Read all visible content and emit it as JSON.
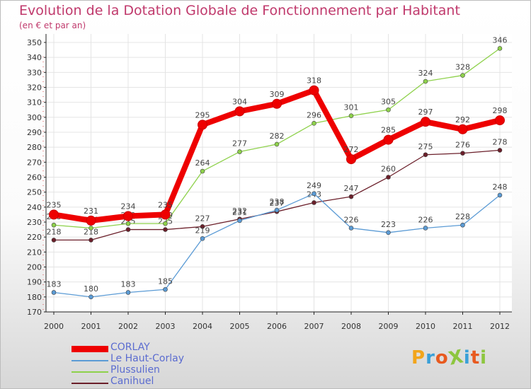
{
  "title": "Evolution de la Dotation Globale de Fonctionnement par Habitant",
  "subtitle": "(en € et par an)",
  "logo": {
    "text": "ProXiti",
    "letters": [
      "P",
      "r",
      "o",
      "X",
      "i",
      "t",
      "i"
    ],
    "colors": [
      "#f2a51b",
      "#3aa0d8",
      "#e85a1f",
      "#8dc63f",
      "#3aa0d8",
      "#e85a1f",
      "#8dc63f"
    ]
  },
  "chart_data": {
    "type": "line",
    "title": "Evolution de la Dotation Globale de Fonctionnement par Habitant",
    "subtitle": "(en € et par an)",
    "xlabel": "",
    "ylabel": "",
    "categories": [
      "2000",
      "2001",
      "2002",
      "2003",
      "2004",
      "2005",
      "2006",
      "2007",
      "2008",
      "2009",
      "2010",
      "2011",
      "2012"
    ],
    "ylim": [
      170,
      350
    ],
    "yticks": [
      170,
      180,
      190,
      200,
      210,
      220,
      230,
      240,
      250,
      260,
      270,
      280,
      290,
      300,
      310,
      320,
      330,
      340,
      350
    ],
    "grid": true,
    "legend_position": "bottom-left",
    "series": [
      {
        "name": "Canihuel",
        "color": "#6b1f2a",
        "values": [
          218,
          218,
          225,
          225,
          227,
          232,
          237,
          243,
          247,
          260,
          275,
          276,
          278
        ]
      },
      {
        "name": "Plussulien",
        "color": "#8ed14b",
        "values": [
          228,
          226,
          229,
          229,
          264,
          277,
          282,
          296,
          301,
          305,
          324,
          328,
          346
        ]
      },
      {
        "name": "Le Haut-Corlay",
        "color": "#5b9bd5",
        "values": [
          183,
          180,
          183,
          185,
          219,
          231,
          238,
          249,
          226,
          223,
          226,
          228,
          248
        ]
      },
      {
        "name": "CORLAY",
        "color": "#ee0000",
        "values": [
          235,
          231,
          234,
          235,
          295,
          304,
          309,
          318,
          272,
          285,
          297,
          292,
          298
        ]
      }
    ],
    "legend": [
      "CORLAY",
      "Le Haut-Corlay",
      "Plussulien",
      "Canihuel"
    ]
  }
}
